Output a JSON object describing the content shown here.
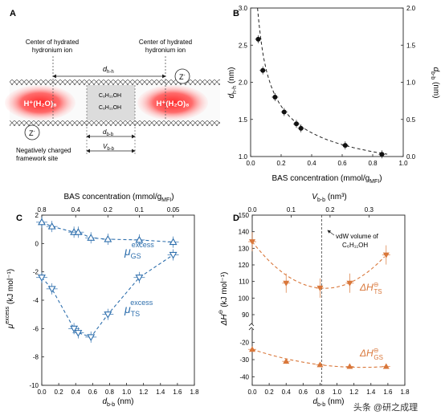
{
  "panel_a": {
    "label": "A",
    "left_center_line1": "Center of hydrated",
    "left_center_line2": "hydronium ion",
    "right_center_line1": "Center of hydrated",
    "right_center_line2": "hydronium ion",
    "d_hh": "d",
    "d_hh_sub": "h-h",
    "ion_left": "H⁺(H₂O)₈",
    "ion_right": "H⁺(H₂O)₈",
    "alcohol_1": "C₆H₁₁OH",
    "alcohol_2": "C₆H₁₁OH",
    "z_symbol": "Z",
    "z_charge": "-",
    "d_bb": "d",
    "d_bb_sub": "b-b",
    "v_bb": "V",
    "v_bb_sub": "b-b",
    "framework_line1": "Negatively charged",
    "framework_line2": "framework site"
  },
  "watermark": "头条 @研之成理",
  "chart_data": [
    {
      "panel": "B",
      "type": "scatter",
      "xlabel": "BAS concentration (mmol/g",
      "xlabel_sub": "MFI",
      "xlabel_end": ")",
      "ylabel_left": "d",
      "ylabel_left_sub": "h-h",
      "ylabel_left_unit": " (nm)",
      "ylabel_right": "d",
      "ylabel_right_sub": "b-b",
      "ylabel_right_unit": " (nm)",
      "xlim": [
        0.0,
        1.0
      ],
      "ylim_left": [
        1.0,
        3.0
      ],
      "ylim_right": [
        0.0,
        2.0
      ],
      "xticks": [
        "0.0",
        "0.2",
        "0.4",
        "0.6",
        "0.8",
        "1.0"
      ],
      "yticks_left": [
        "1.0",
        "1.5",
        "2.0",
        "2.5",
        "3.0"
      ],
      "yticks_right": [
        "0.0",
        "0.5",
        "1.0",
        "1.5",
        "2.0"
      ],
      "points": [
        {
          "x": 0.05,
          "y": 2.58
        },
        {
          "x": 0.08,
          "y": 2.16
        },
        {
          "x": 0.16,
          "y": 1.8
        },
        {
          "x": 0.22,
          "y": 1.6
        },
        {
          "x": 0.3,
          "y": 1.44
        },
        {
          "x": 0.33,
          "y": 1.38
        },
        {
          "x": 0.62,
          "y": 1.15
        },
        {
          "x": 0.86,
          "y": 1.03
        }
      ],
      "fit": "dashed"
    },
    {
      "panel": "C",
      "type": "scatter",
      "top_xlabel": "BAS concentration (mmol/g",
      "top_xlabel_sub": "MFI",
      "top_xlabel_end": ")",
      "top_xticks": [
        "0.8",
        "0.4",
        "0.2",
        "0.1",
        "0.05"
      ],
      "xlabel": "d",
      "xlabel_sub": "b-b",
      "xlabel_unit": " (nm)",
      "ylabel": "μ",
      "ylabel_sup": "excess",
      "ylabel_unit": " (kJ mol⁻¹)",
      "xlim": [
        0.0,
        1.8
      ],
      "ylim": [
        -10,
        2
      ],
      "xticks": [
        "0.0",
        "0.2",
        "0.4",
        "0.6",
        "0.8",
        "1.0",
        "1.2",
        "1.4",
        "1.6",
        "1.8"
      ],
      "yticks": [
        "2",
        "0",
        "-2",
        "-4",
        "-6",
        "-8",
        "-10"
      ],
      "series": [
        {
          "name": "μ",
          "sub": "GS",
          "sup": "excess",
          "marker": "triangle-up",
          "x": [
            0.0,
            0.12,
            0.38,
            0.43,
            0.58,
            0.78,
            1.15,
            1.55
          ],
          "y": [
            1.5,
            1.2,
            0.8,
            0.8,
            0.4,
            0.3,
            0.25,
            0.1
          ]
        },
        {
          "name": "μ",
          "sub": "TS",
          "sup": "excess",
          "marker": "triangle-down",
          "x": [
            0.0,
            0.12,
            0.38,
            0.43,
            0.58,
            0.78,
            1.15,
            1.55
          ],
          "y": [
            -2.4,
            -3.2,
            -6.0,
            -6.3,
            -6.6,
            -5.0,
            -2.4,
            -0.8
          ]
        }
      ],
      "color": "#2e6fad"
    },
    {
      "panel": "D",
      "type": "scatter",
      "top_xlabel": "V",
      "top_xlabel_sub": "b-b",
      "top_xlabel_unit": " (nm³)",
      "top_xticks": [
        "0.0",
        "0.1",
        "0.2",
        "0.3"
      ],
      "xlabel": "d",
      "xlabel_sub": "b-b",
      "xlabel_unit": " (nm)",
      "ylabel": "ΔH",
      "ylabel_sup": "⊖",
      "ylabel_unit": " (kJ mol⁻¹)",
      "xlim": [
        0.0,
        1.8
      ],
      "xticks": [
        "0.0",
        "0.2",
        "0.4",
        "0.6",
        "0.8",
        "1.0",
        "1.2",
        "1.4",
        "1.6",
        "1.8"
      ],
      "yticks_upper": [
        "150",
        "140",
        "130",
        "120",
        "110",
        "100",
        "90"
      ],
      "yticks_lower": [
        "-20",
        "-30",
        "-40"
      ],
      "annotation_line1": "vdW volume of",
      "annotation_line2": "C₆H₁₁OH",
      "vline_x": 0.82,
      "series": [
        {
          "name": "ΔH",
          "sub": "TS",
          "sup": "⊖",
          "x": [
            0.0,
            0.4,
            0.8,
            1.15,
            1.58
          ],
          "y": [
            134,
            109,
            106,
            109,
            126
          ]
        },
        {
          "name": "ΔH",
          "sub": "GS",
          "sup": "⊖",
          "x": [
            0.0,
            0.4,
            0.8,
            1.15,
            1.58
          ],
          "y": [
            -24,
            -31,
            -33,
            -34,
            -34
          ]
        }
      ],
      "color": "#d9773a"
    }
  ]
}
